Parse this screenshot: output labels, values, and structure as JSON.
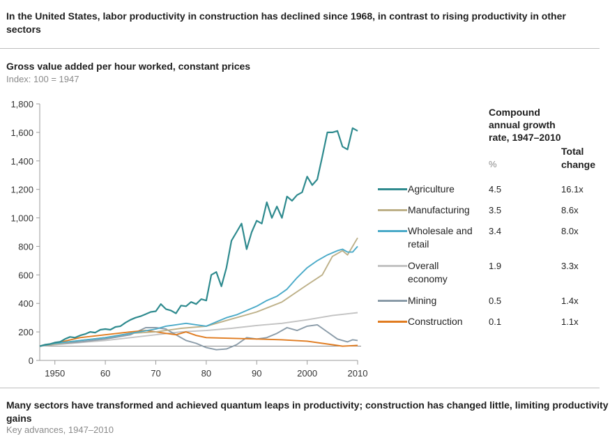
{
  "header": {
    "headline": "In the United States, labor productivity in construction has declined since 1968, in contrast to rising productivity in other sectors"
  },
  "chart_header": {
    "title": "Gross value added per hour worked, constant prices",
    "subtitle": "Index: 100 = 1947"
  },
  "legend": {
    "rate_header": "Compound annual growth rate, 1947–2010",
    "rate_unit": "%",
    "total_header": "Total change"
  },
  "footer": {
    "title": "Many sectors have transformed and achieved quantum leaps in productivity; construction has changed little, limiting productivity gains",
    "note": "Key advances, 1947–2010"
  },
  "chart_data": {
    "type": "line",
    "title": "Gross value added per hour worked, constant prices",
    "subtitle": "Index: 100 = 1947",
    "xlim": [
      1947,
      2010
    ],
    "ylim": [
      0,
      1800
    ],
    "x_ticks": [
      1950,
      1960,
      1970,
      1980,
      1990,
      2000,
      2010
    ],
    "x_tick_labels": [
      "1950",
      "60",
      "70",
      "80",
      "90",
      "2000",
      "2010"
    ],
    "y_ticks": [
      0,
      200,
      400,
      600,
      800,
      1000,
      1200,
      1400,
      1600,
      1800
    ],
    "y_tick_labels": [
      "0",
      "200",
      "400",
      "600",
      "800",
      "1,000",
      "1,200",
      "1,400",
      "1,600",
      "1,800"
    ],
    "reference_line": 100,
    "series": [
      {
        "name": "Agriculture",
        "color": "#2e8a8e",
        "rate": "4.5",
        "total": "16.1x",
        "x": [
          1947,
          1948,
          1949,
          1950,
          1951,
          1952,
          1953,
          1954,
          1955,
          1956,
          1957,
          1958,
          1959,
          1960,
          1961,
          1962,
          1963,
          1964,
          1965,
          1966,
          1967,
          1968,
          1969,
          1970,
          1971,
          1972,
          1973,
          1974,
          1975,
          1976,
          1977,
          1978,
          1979,
          1980,
          1981,
          1982,
          1983,
          1984,
          1985,
          1986,
          1987,
          1988,
          1989,
          1990,
          1991,
          1992,
          1993,
          1994,
          1995,
          1996,
          1997,
          1998,
          1999,
          2000,
          2001,
          2002,
          2003,
          2004,
          2005,
          2006,
          2007,
          2008,
          2009,
          2010
        ],
        "y": [
          100,
          110,
          115,
          125,
          130,
          150,
          165,
          160,
          175,
          185,
          200,
          195,
          215,
          220,
          215,
          235,
          240,
          265,
          285,
          300,
          310,
          325,
          340,
          345,
          395,
          360,
          350,
          330,
          385,
          380,
          410,
          395,
          430,
          420,
          600,
          620,
          520,
          650,
          840,
          900,
          960,
          780,
          900,
          980,
          960,
          1110,
          1000,
          1080,
          1000,
          1150,
          1120,
          1160,
          1180,
          1290,
          1230,
          1270,
          1430,
          1600,
          1600,
          1610,
          1500,
          1480,
          1630,
          1610
        ]
      },
      {
        "name": "Manufacturing",
        "color": "#bdb088",
        "rate": "3.5",
        "total": "8.6x",
        "x": [
          1947,
          1950,
          1955,
          1960,
          1965,
          1970,
          1975,
          1980,
          1985,
          1990,
          1995,
          2000,
          2003,
          2005,
          2007,
          2008,
          2009,
          2010
        ],
        "y": [
          100,
          115,
          140,
          160,
          190,
          200,
          225,
          240,
          290,
          340,
          410,
          530,
          600,
          730,
          770,
          740,
          800,
          860
        ]
      },
      {
        "name": "Wholesale and retail",
        "color": "#4aaac8",
        "rate": "3.4",
        "total": "8.0x",
        "x": [
          1947,
          1950,
          1955,
          1960,
          1965,
          1970,
          1972,
          1974,
          1976,
          1978,
          1980,
          1982,
          1984,
          1986,
          1988,
          1990,
          1992,
          1994,
          1996,
          1998,
          2000,
          2002,
          2004,
          2006,
          2007,
          2008,
          2009,
          2010
        ],
        "y": [
          100,
          120,
          140,
          160,
          190,
          220,
          240,
          250,
          260,
          250,
          240,
          270,
          300,
          320,
          350,
          380,
          420,
          450,
          500,
          580,
          650,
          700,
          740,
          770,
          780,
          760,
          760,
          800
        ]
      },
      {
        "name": "Overall economy",
        "color": "#c2c2c2",
        "rate": "1.9",
        "total": "3.3x",
        "x": [
          1947,
          1950,
          1955,
          1960,
          1965,
          1970,
          1975,
          1980,
          1985,
          1990,
          1995,
          2000,
          2005,
          2010
        ],
        "y": [
          100,
          110,
          125,
          140,
          160,
          180,
          200,
          210,
          225,
          245,
          260,
          285,
          315,
          335
        ]
      },
      {
        "name": "Mining",
        "color": "#8a9ba8",
        "rate": "0.5",
        "total": "1.4x",
        "x": [
          1947,
          1950,
          1955,
          1960,
          1965,
          1968,
          1970,
          1972,
          1974,
          1976,
          1978,
          1980,
          1982,
          1984,
          1986,
          1988,
          1990,
          1992,
          1994,
          1996,
          1998,
          2000,
          2002,
          2004,
          2006,
          2008,
          2009,
          2010
        ],
        "y": [
          100,
          115,
          130,
          150,
          180,
          230,
          230,
          220,
          180,
          140,
          120,
          90,
          75,
          80,
          110,
          160,
          150,
          160,
          190,
          230,
          210,
          240,
          250,
          200,
          150,
          130,
          145,
          140
        ]
      },
      {
        "name": "Construction",
        "color": "#e07b1f",
        "rate": "0.1",
        "total": "1.1x",
        "x": [
          1947,
          1950,
          1955,
          1960,
          1965,
          1968,
          1970,
          1972,
          1974,
          1976,
          1978,
          1980,
          1985,
          1990,
          1995,
          2000,
          2005,
          2007,
          2010
        ],
        "y": [
          100,
          120,
          160,
          180,
          200,
          210,
          200,
          190,
          180,
          200,
          175,
          160,
          155,
          150,
          145,
          135,
          110,
          100,
          105
        ]
      }
    ]
  }
}
